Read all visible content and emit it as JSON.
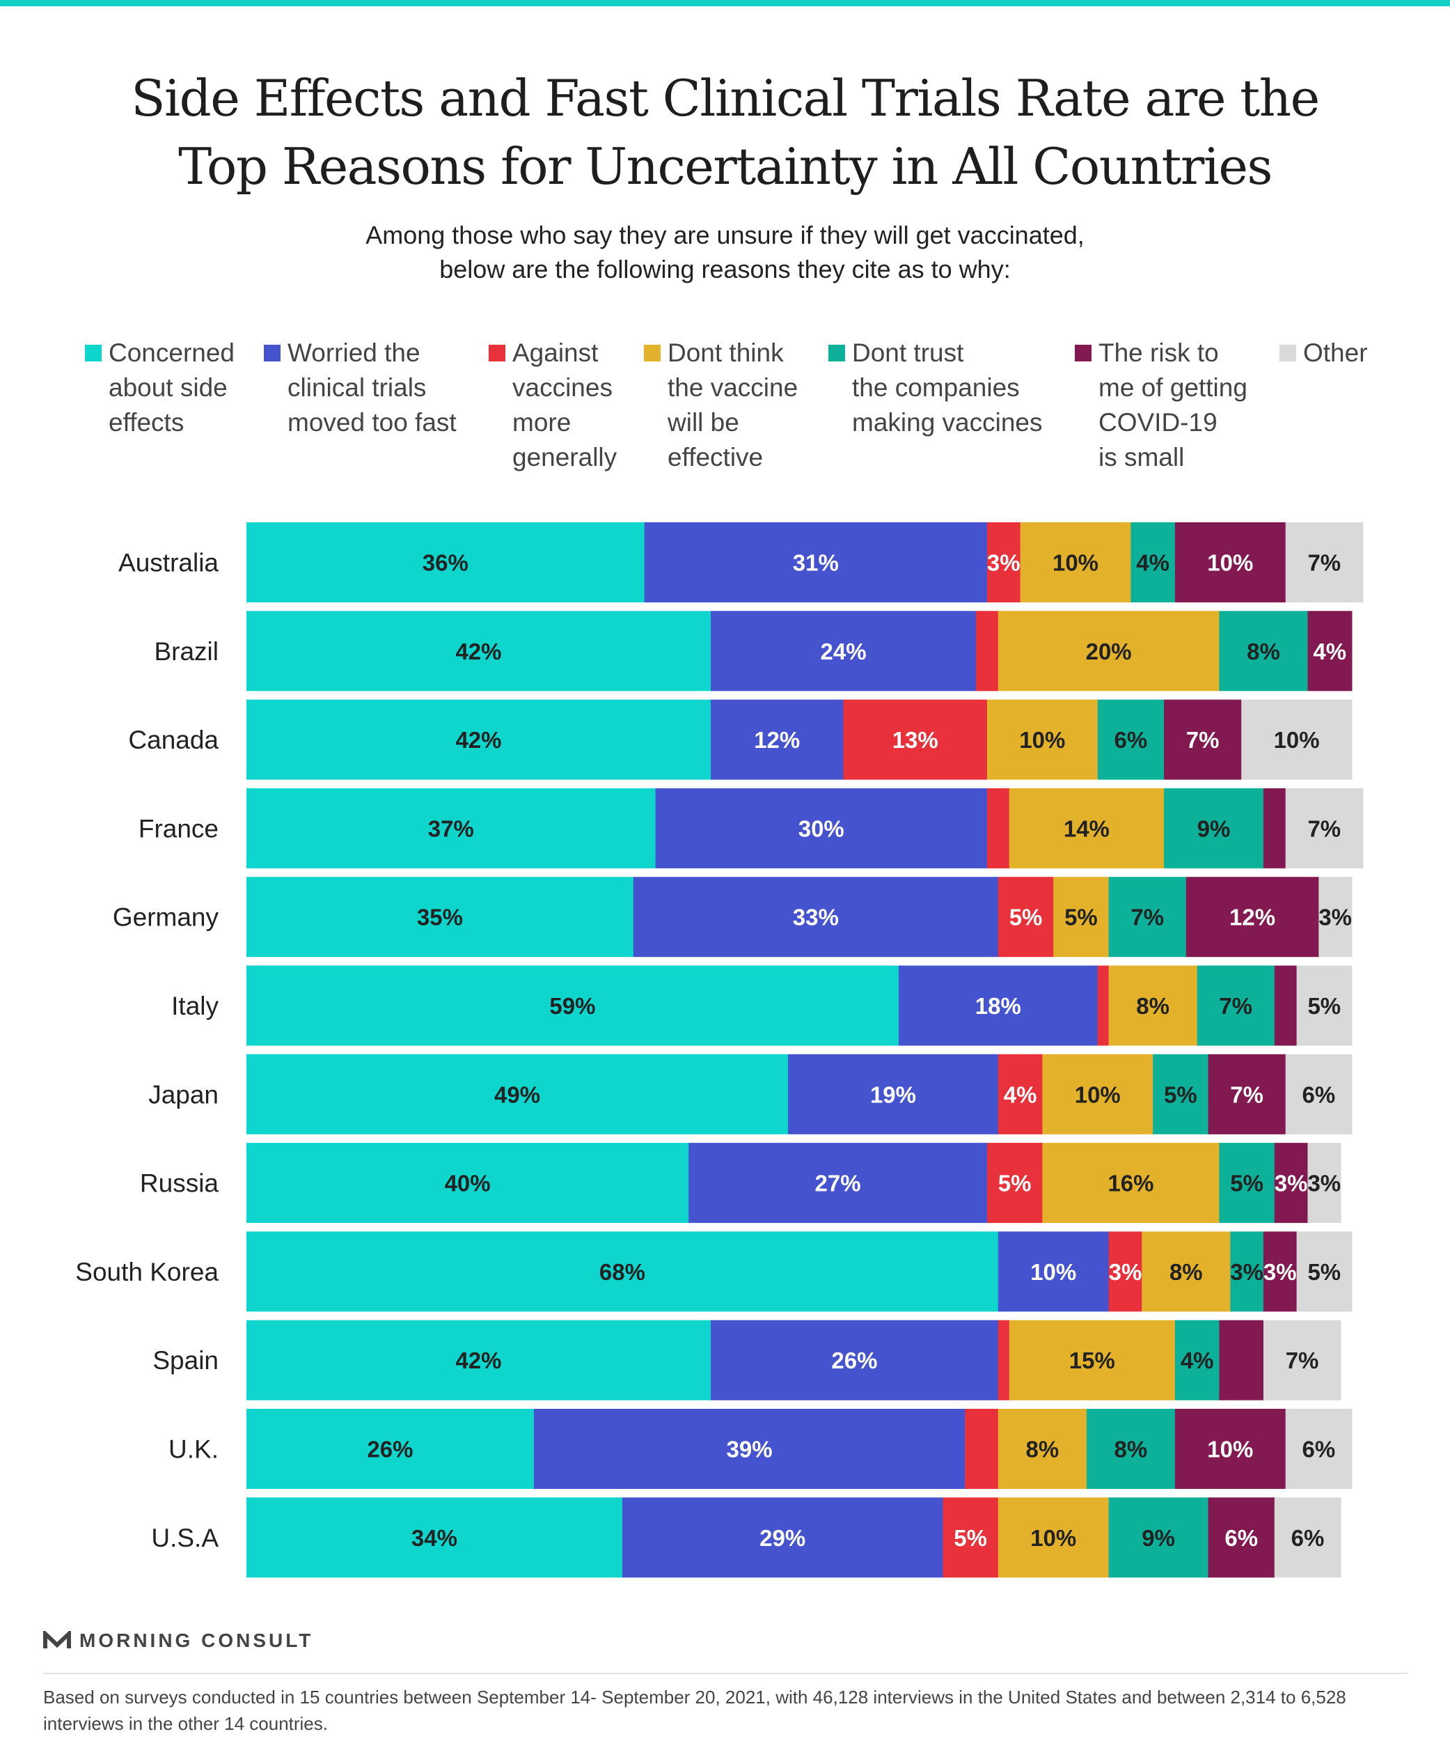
{
  "title": "Side Effects and Fast Clinical Trials Rate are the\nTop Reasons for Uncertainty in All Countries",
  "subtitle": "Among those who say they are unsure if they will get vaccinated,\nbelow are the following reasons they cite as to why:",
  "legend": [
    {
      "label": "Concerned\nabout side\neffects",
      "color": "#0fd6cc"
    },
    {
      "label": "Worried the\nclinical trials\nmoved too fast",
      "color": "#4553cf"
    },
    {
      "label": "Against\nvaccines\nmore\ngenerally",
      "color": "#e8313a"
    },
    {
      "label": "Dont think\nthe vaccine\nwill be\neffective",
      "color": "#e3b12a"
    },
    {
      "label": "Dont trust\nthe companies\nmaking vaccines",
      "color": "#0db098"
    },
    {
      "label": "The risk to\nme of getting\nCOVID-19\nis small",
      "color": "#821950"
    },
    {
      "label": "Other",
      "color": "#d9d9d9"
    }
  ],
  "chart_data": {
    "type": "bar",
    "orientation": "horizontal",
    "stacked": true,
    "categories": [
      "Australia",
      "Brazil",
      "Canada",
      "France",
      "Germany",
      "Italy",
      "Japan",
      "Russia",
      "South Korea",
      "Spain",
      "U.K.",
      "U.S.A"
    ],
    "series": [
      {
        "name": "Concerned about side effects",
        "values": [
          36,
          42,
          42,
          37,
          35,
          59,
          49,
          40,
          68,
          42,
          26,
          34
        ],
        "labels": [
          "36%",
          "42%",
          "42%",
          "37%",
          "35%",
          "59%",
          "49%",
          "40%",
          "68%",
          "42%",
          "26%",
          "34%"
        ]
      },
      {
        "name": "Worried the clinical trials moved too fast",
        "values": [
          31,
          24,
          12,
          30,
          33,
          18,
          19,
          27,
          10,
          26,
          39,
          29
        ],
        "labels": [
          "31%",
          "24%",
          "12%",
          "30%",
          "33%",
          "18%",
          "19%",
          "27%",
          "10%",
          "26%",
          "39%",
          "29%"
        ]
      },
      {
        "name": "Against vaccines more generally",
        "values": [
          3,
          2,
          13,
          2,
          5,
          1,
          4,
          5,
          3,
          1,
          3,
          5
        ],
        "labels": [
          "3%",
          "",
          "13%",
          "",
          "5%",
          "",
          "4%",
          "5%",
          "3%",
          "",
          "",
          "5%"
        ]
      },
      {
        "name": "Dont think the vaccine will be effective",
        "values": [
          10,
          20,
          10,
          14,
          5,
          8,
          10,
          16,
          8,
          15,
          8,
          10
        ],
        "labels": [
          "10%",
          "20%",
          "10%",
          "14%",
          "5%",
          "8%",
          "10%",
          "16%",
          "8%",
          "15%",
          "8%",
          "10%"
        ]
      },
      {
        "name": "Dont trust the companies making vaccines",
        "values": [
          4,
          8,
          6,
          9,
          7,
          7,
          5,
          5,
          3,
          4,
          8,
          9
        ],
        "labels": [
          "4%",
          "8%",
          "6%",
          "9%",
          "7%",
          "7%",
          "5%",
          "5%",
          "3%",
          "4%",
          "8%",
          "9%"
        ]
      },
      {
        "name": "The risk to me of getting COVID-19 is small",
        "values": [
          10,
          4,
          7,
          2,
          12,
          2,
          7,
          3,
          3,
          4,
          10,
          6
        ],
        "labels": [
          "10%",
          "4%",
          "7%",
          "",
          "12%",
          "",
          "7%",
          "3%",
          "3%",
          "",
          "10%",
          "6%"
        ]
      },
      {
        "name": "Other",
        "values": [
          7,
          0,
          10,
          7,
          3,
          5,
          6,
          3,
          5,
          7,
          6,
          6
        ],
        "labels": [
          "7%",
          "",
          "10%",
          "7%",
          "3%",
          "5%",
          "6%",
          "3%",
          "5%",
          "7%",
          "6%",
          "6%"
        ]
      }
    ],
    "xlim": [
      0,
      100
    ],
    "label_colors": {
      "light": "#ffffff",
      "dark": "#222222"
    },
    "light_label_series": [
      1,
      2,
      5
    ],
    "grid": false,
    "legend_position": "top"
  },
  "footer": {
    "logo_text": "MORNING CONSULT",
    "logo_mark": "M",
    "note": "Based on surveys conducted in 15 countries between September 14- September 20, 2021, with 46,128 interviews in the United States and between 2,314 to 6,528 interviews in the other 14 countries."
  }
}
